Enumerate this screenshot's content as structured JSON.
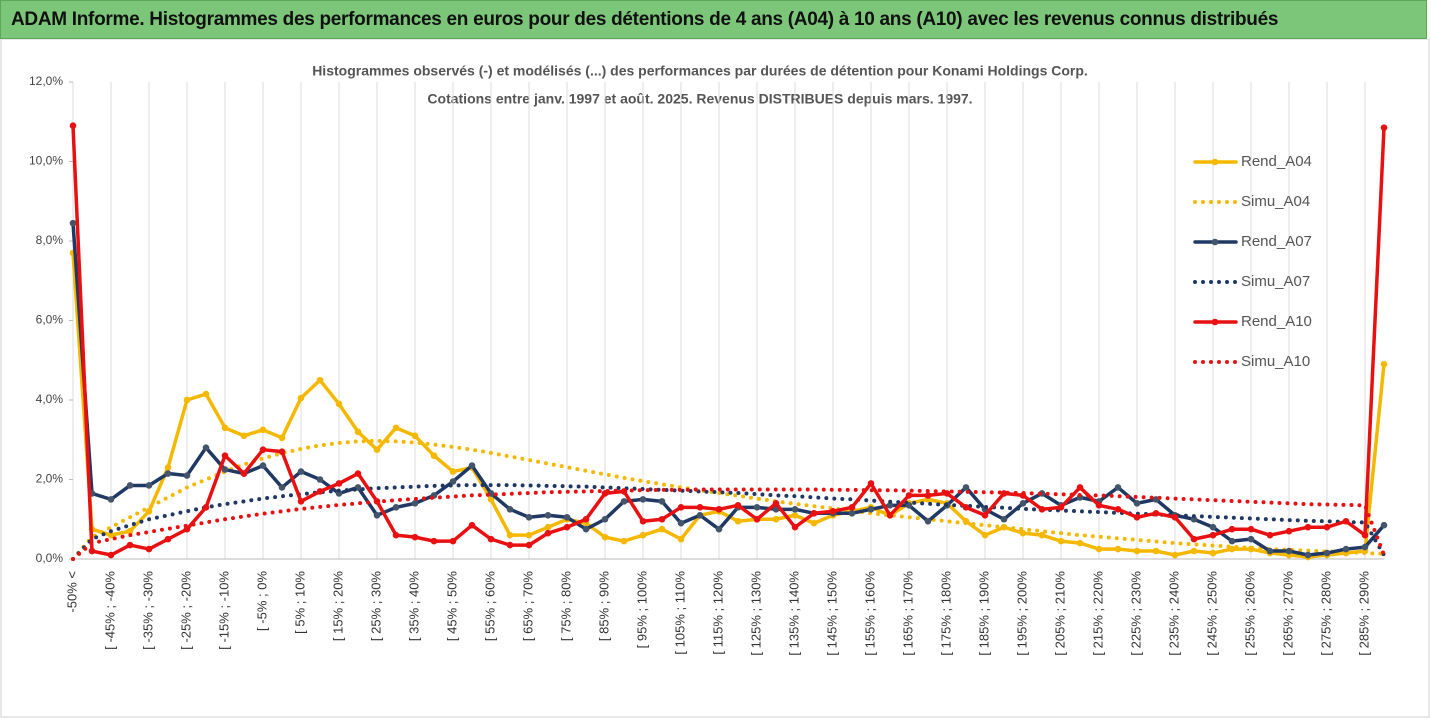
{
  "header": {
    "title": "ADAM Informe. Histogrammes des performances en euros pour des détentions de 4 ans (A04) à 10 ans (A10) avec les revenus connus distribués"
  },
  "chart_data": {
    "type": "line",
    "title": "Histogrammes observés (-) et modélisés (...) des performances par durées de détention pour Konami Holdings Corp.",
    "subtitle": "Cotations entre janv. 1997 et août. 2025. Revenus DISTRIBUES depuis mars. 1997.",
    "categories": [
      "-50% <",
      null,
      "[ -45% ; -40%",
      null,
      "[ -35% ; -30%",
      null,
      "[ -25% ; -20%",
      null,
      "[ -15% ; -10%",
      null,
      "[ -5% ; 0%",
      null,
      "[ 5% ; 10%",
      null,
      "[ 15% ; 20%",
      null,
      "[ 25% ; 30%",
      null,
      "[ 35% ; 40%",
      null,
      "[ 45% ; 50%",
      null,
      "[ 55% ; 60%",
      null,
      "[ 65% ; 70%",
      null,
      "[ 75% ; 80%",
      null,
      "[ 85% ; 90%",
      null,
      "[ 95% ; 100%",
      null,
      "[ 105% ; 110%",
      null,
      "[ 115% ; 120%",
      null,
      "[ 125% ; 130%",
      null,
      "[ 135% ; 140%",
      null,
      "[ 145% ; 150%",
      null,
      "[ 155% ; 160%",
      null,
      "[ 165% ; 170%",
      null,
      "[ 175% ; 180%",
      null,
      "[ 185% ; 190%",
      null,
      "[ 195% ; 200%",
      null,
      "[ 205% ; 210%",
      null,
      "[ 215% ; 220%",
      null,
      "[ 225% ; 230%",
      null,
      "[ 235% ; 240%",
      null,
      "[ 245% ; 250%",
      null,
      "[ 255% ; 260%",
      null,
      "[ 265% ; 270%",
      null,
      "[ 275% ; 280%",
      null,
      "[ 285% ; 290%",
      null
    ],
    "series": [
      {
        "name": "Rend_A04",
        "color": "#f5b800",
        "style": "solid",
        "markers": true,
        "values": [
          7.7,
          0.75,
          0.6,
          0.7,
          1.2,
          2.3,
          4.0,
          4.15,
          3.3,
          3.1,
          3.25,
          3.05,
          4.05,
          4.5,
          3.9,
          3.2,
          2.75,
          3.3,
          3.1,
          2.6,
          2.2,
          2.3,
          1.5,
          0.6,
          0.6,
          0.8,
          1.0,
          0.9,
          0.55,
          0.45,
          0.6,
          0.75,
          0.5,
          1.1,
          1.2,
          0.95,
          1.0,
          1.0,
          1.1,
          0.9,
          1.1,
          1.2,
          1.3,
          1.1,
          1.4,
          1.5,
          1.4,
          0.95,
          0.6,
          0.8,
          0.65,
          0.6,
          0.45,
          0.4,
          0.25,
          0.25,
          0.2,
          0.2,
          0.1,
          0.2,
          0.15,
          0.25,
          0.25,
          0.15,
          0.1,
          0.05,
          0.1,
          0.15,
          0.2,
          4.9
        ]
      },
      {
        "name": "Simu_A04",
        "color": "#f5b800",
        "style": "dotted",
        "markers": false,
        "values": [
          0,
          0.55,
          0.8,
          1.05,
          1.3,
          1.55,
          1.8,
          2.0,
          2.2,
          2.38,
          2.53,
          2.66,
          2.77,
          2.86,
          2.92,
          2.96,
          2.97,
          2.96,
          2.93,
          2.88,
          2.82,
          2.75,
          2.67,
          2.58,
          2.49,
          2.4,
          2.31,
          2.22,
          2.13,
          2.04,
          1.96,
          1.88,
          1.8,
          1.73,
          1.66,
          1.59,
          1.52,
          1.45,
          1.39,
          1.33,
          1.27,
          1.21,
          1.15,
          1.1,
          1.05,
          1.0,
          0.95,
          0.9,
          0.85,
          0.8,
          0.75,
          0.7,
          0.65,
          0.6,
          0.56,
          0.52,
          0.48,
          0.44,
          0.4,
          0.37,
          0.34,
          0.31,
          0.28,
          0.25,
          0.23,
          0.21,
          0.19,
          0.17,
          0.15,
          0.13
        ]
      },
      {
        "name": "Rend_A07",
        "color": "#1f3864",
        "style": "solid",
        "markers": true,
        "values": [
          8.45,
          1.65,
          1.5,
          1.85,
          1.85,
          2.15,
          2.1,
          2.8,
          2.25,
          2.15,
          2.35,
          1.8,
          2.2,
          2.0,
          1.65,
          1.8,
          1.1,
          1.3,
          1.4,
          1.6,
          1.95,
          2.35,
          1.65,
          1.25,
          1.05,
          1.1,
          1.05,
          0.75,
          1.0,
          1.45,
          1.5,
          1.45,
          0.9,
          1.1,
          0.75,
          1.3,
          1.3,
          1.25,
          1.25,
          1.15,
          1.15,
          1.15,
          1.25,
          1.35,
          1.35,
          0.95,
          1.35,
          1.8,
          1.25,
          1.0,
          1.4,
          1.65,
          1.35,
          1.55,
          1.45,
          1.8,
          1.4,
          1.5,
          1.1,
          1.0,
          0.8,
          0.45,
          0.5,
          0.2,
          0.2,
          0.1,
          0.15,
          0.25,
          0.3,
          0.85
        ]
      },
      {
        "name": "Simu_A07",
        "color": "#1f3864",
        "style": "dotted",
        "markers": false,
        "values": [
          0,
          0.5,
          0.7,
          0.85,
          1.0,
          1.1,
          1.2,
          1.3,
          1.38,
          1.45,
          1.52,
          1.58,
          1.63,
          1.68,
          1.72,
          1.75,
          1.78,
          1.8,
          1.82,
          1.84,
          1.85,
          1.86,
          1.86,
          1.86,
          1.85,
          1.84,
          1.83,
          1.82,
          1.8,
          1.78,
          1.76,
          1.74,
          1.72,
          1.7,
          1.68,
          1.66,
          1.63,
          1.6,
          1.58,
          1.55,
          1.52,
          1.5,
          1.47,
          1.44,
          1.42,
          1.39,
          1.36,
          1.34,
          1.31,
          1.29,
          1.26,
          1.24,
          1.22,
          1.2,
          1.18,
          1.16,
          1.14,
          1.12,
          1.1,
          1.08,
          1.06,
          1.04,
          1.02,
          1.0,
          0.98,
          0.96,
          0.95,
          0.93,
          0.92,
          0.1
        ]
      },
      {
        "name": "Rend_A10",
        "color": "#e81010",
        "style": "solid",
        "markers": true,
        "values": [
          10.9,
          0.2,
          0.1,
          0.35,
          0.25,
          0.5,
          0.75,
          1.3,
          2.6,
          2.15,
          2.75,
          2.7,
          1.45,
          1.7,
          1.9,
          2.15,
          1.45,
          0.6,
          0.55,
          0.45,
          0.45,
          0.85,
          0.5,
          0.35,
          0.35,
          0.65,
          0.8,
          1.0,
          1.65,
          1.7,
          0.95,
          1.0,
          1.3,
          1.3,
          1.25,
          1.35,
          1.0,
          1.4,
          0.8,
          1.15,
          1.2,
          1.3,
          1.9,
          1.1,
          1.6,
          1.6,
          1.65,
          1.3,
          1.1,
          1.65,
          1.6,
          1.25,
          1.3,
          1.8,
          1.35,
          1.25,
          1.05,
          1.15,
          1.05,
          0.5,
          0.6,
          0.75,
          0.75,
          0.6,
          0.7,
          0.8,
          0.8,
          0.95,
          0.6,
          10.85
        ]
      },
      {
        "name": "Simu_A10",
        "color": "#e81010",
        "style": "dotted",
        "markers": false,
        "values": [
          0,
          0.4,
          0.5,
          0.6,
          0.68,
          0.76,
          0.84,
          0.92,
          1.0,
          1.07,
          1.14,
          1.2,
          1.26,
          1.31,
          1.36,
          1.4,
          1.44,
          1.48,
          1.51,
          1.54,
          1.57,
          1.6,
          1.62,
          1.64,
          1.66,
          1.68,
          1.69,
          1.7,
          1.71,
          1.72,
          1.73,
          1.74,
          1.74,
          1.75,
          1.75,
          1.75,
          1.75,
          1.75,
          1.75,
          1.75,
          1.74,
          1.74,
          1.73,
          1.73,
          1.72,
          1.71,
          1.7,
          1.69,
          1.68,
          1.67,
          1.66,
          1.64,
          1.63,
          1.61,
          1.6,
          1.58,
          1.56,
          1.54,
          1.52,
          1.5,
          1.48,
          1.46,
          1.44,
          1.42,
          1.4,
          1.38,
          1.37,
          1.36,
          1.35,
          0.1
        ]
      }
    ],
    "ylim": [
      0,
      12
    ],
    "yticks": [
      {
        "value": 0,
        "label": "0,0%"
      },
      {
        "value": 2,
        "label": "2,0%"
      },
      {
        "value": 4,
        "label": "4,0%"
      },
      {
        "value": 6,
        "label": "6,0%"
      },
      {
        "value": 8,
        "label": "8,0%"
      },
      {
        "value": 10,
        "label": "10,0%"
      },
      {
        "value": 12,
        "label": "12,0%"
      }
    ],
    "grid": "x",
    "legend": "right"
  }
}
